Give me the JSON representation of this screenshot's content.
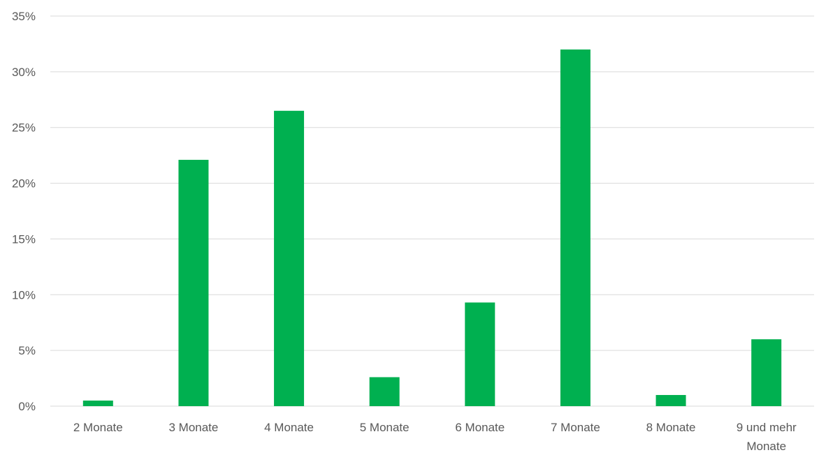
{
  "chart_data": {
    "type": "bar",
    "title": "",
    "xlabel": "",
    "ylabel": "",
    "categories": [
      "2 Monate",
      "3 Monate",
      "4 Monate",
      "5 Monate",
      "6 Monate",
      "7 Monate",
      "8 Monate",
      "9 und mehr Monate"
    ],
    "category_lines": [
      [
        "2 Monate"
      ],
      [
        "3 Monate"
      ],
      [
        "4 Monate"
      ],
      [
        "5 Monate"
      ],
      [
        "6 Monate"
      ],
      [
        "7 Monate"
      ],
      [
        "8 Monate"
      ],
      [
        "9 und mehr",
        "Monate"
      ]
    ],
    "values": [
      0.5,
      22.1,
      26.5,
      2.6,
      9.3,
      32.0,
      1.0,
      6.0
    ],
    "unit": "%",
    "ylim": [
      0,
      35
    ],
    "yticks": [
      0,
      5,
      10,
      15,
      20,
      25,
      30,
      35
    ],
    "ytick_labels": [
      "0%",
      "5%",
      "10%",
      "15%",
      "20%",
      "25%",
      "30%",
      "35%"
    ],
    "grid": true,
    "legend": "none",
    "bar_color": "#00b050",
    "grid_color": "#d9d9d9",
    "text_color": "#595959"
  }
}
